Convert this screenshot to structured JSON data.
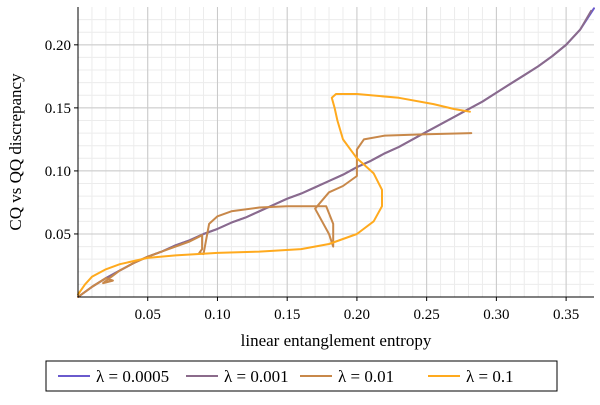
{
  "chart_data": {
    "type": "line",
    "xlabel": "linear entanglement entropy",
    "ylabel": "CQ vs QQ discrepancy",
    "xlim": [
      0,
      0.37
    ],
    "ylim": [
      0,
      0.23
    ],
    "x_ticks": [
      0.05,
      0.1,
      0.15,
      0.2,
      0.25,
      0.3,
      0.35
    ],
    "x_tick_labels": [
      "0.05",
      "0.10",
      "0.15",
      "0.20",
      "0.25",
      "0.30",
      "0.35"
    ],
    "y_ticks": [
      0.05,
      0.1,
      0.15,
      0.2
    ],
    "y_tick_labels": [
      "0.05",
      "0.10",
      "0.15",
      "0.20"
    ],
    "grid": true,
    "legend_position": "bottom",
    "series": [
      {
        "name": "λ = 0.0005",
        "color": "#6a5acd",
        "points": [
          [
            0.0,
            0.0
          ],
          [
            0.01,
            0.008
          ],
          [
            0.02,
            0.015
          ],
          [
            0.03,
            0.021
          ],
          [
            0.04,
            0.027
          ],
          [
            0.05,
            0.032
          ],
          [
            0.06,
            0.036
          ],
          [
            0.07,
            0.041
          ],
          [
            0.08,
            0.045
          ],
          [
            0.09,
            0.05
          ],
          [
            0.1,
            0.054
          ],
          [
            0.11,
            0.059
          ],
          [
            0.12,
            0.063
          ],
          [
            0.13,
            0.068
          ],
          [
            0.14,
            0.073
          ],
          [
            0.15,
            0.078
          ],
          [
            0.16,
            0.082
          ],
          [
            0.17,
            0.087
          ],
          [
            0.18,
            0.092
          ],
          [
            0.19,
            0.097
          ],
          [
            0.2,
            0.103
          ],
          [
            0.21,
            0.108
          ],
          [
            0.22,
            0.114
          ],
          [
            0.23,
            0.119
          ],
          [
            0.24,
            0.125
          ],
          [
            0.25,
            0.131
          ],
          [
            0.26,
            0.137
          ],
          [
            0.27,
            0.143
          ],
          [
            0.28,
            0.149
          ],
          [
            0.29,
            0.155
          ],
          [
            0.3,
            0.162
          ],
          [
            0.31,
            0.169
          ],
          [
            0.32,
            0.176
          ],
          [
            0.33,
            0.183
          ],
          [
            0.34,
            0.191
          ],
          [
            0.35,
            0.2
          ],
          [
            0.36,
            0.212
          ],
          [
            0.37,
            0.229
          ]
        ]
      },
      {
        "name": "λ = 0.001",
        "color": "#8b6b8b",
        "points": [
          [
            0.0,
            0.0
          ],
          [
            0.01,
            0.008
          ],
          [
            0.02,
            0.015
          ],
          [
            0.03,
            0.021
          ],
          [
            0.04,
            0.027
          ],
          [
            0.05,
            0.032
          ],
          [
            0.06,
            0.036
          ],
          [
            0.07,
            0.041
          ],
          [
            0.08,
            0.045
          ],
          [
            0.09,
            0.05
          ],
          [
            0.1,
            0.054
          ],
          [
            0.11,
            0.059
          ],
          [
            0.12,
            0.063
          ],
          [
            0.13,
            0.068
          ],
          [
            0.14,
            0.073
          ],
          [
            0.15,
            0.078
          ],
          [
            0.16,
            0.082
          ],
          [
            0.17,
            0.087
          ],
          [
            0.18,
            0.092
          ],
          [
            0.19,
            0.097
          ],
          [
            0.2,
            0.103
          ],
          [
            0.21,
            0.108
          ],
          [
            0.22,
            0.114
          ],
          [
            0.23,
            0.119
          ],
          [
            0.24,
            0.125
          ],
          [
            0.25,
            0.131
          ],
          [
            0.26,
            0.137
          ],
          [
            0.27,
            0.143
          ],
          [
            0.28,
            0.149
          ],
          [
            0.29,
            0.155
          ],
          [
            0.3,
            0.162
          ],
          [
            0.31,
            0.169
          ],
          [
            0.32,
            0.176
          ],
          [
            0.33,
            0.183
          ],
          [
            0.34,
            0.191
          ],
          [
            0.35,
            0.2
          ],
          [
            0.36,
            0.212
          ],
          [
            0.368,
            0.227
          ]
        ]
      },
      {
        "name": "λ = 0.01",
        "color": "#c8884a",
        "points": [
          [
            0.0,
            0.0
          ],
          [
            0.01,
            0.008
          ],
          [
            0.02,
            0.015
          ],
          [
            0.025,
            0.013
          ],
          [
            0.018,
            0.011
          ],
          [
            0.03,
            0.021
          ],
          [
            0.04,
            0.027
          ],
          [
            0.05,
            0.032
          ],
          [
            0.06,
            0.036
          ],
          [
            0.07,
            0.04
          ],
          [
            0.08,
            0.044
          ],
          [
            0.089,
            0.049
          ],
          [
            0.089,
            0.038
          ],
          [
            0.087,
            0.035
          ],
          [
            0.09,
            0.034
          ],
          [
            0.094,
            0.058
          ],
          [
            0.1,
            0.064
          ],
          [
            0.11,
            0.068
          ],
          [
            0.13,
            0.071
          ],
          [
            0.15,
            0.072
          ],
          [
            0.17,
            0.072
          ],
          [
            0.178,
            0.072
          ],
          [
            0.183,
            0.058
          ],
          [
            0.183,
            0.04
          ],
          [
            0.18,
            0.05
          ],
          [
            0.17,
            0.07
          ],
          [
            0.18,
            0.083
          ],
          [
            0.19,
            0.088
          ],
          [
            0.2,
            0.096
          ],
          [
            0.2,
            0.108
          ],
          [
            0.2,
            0.117
          ],
          [
            0.205,
            0.125
          ],
          [
            0.22,
            0.128
          ],
          [
            0.25,
            0.129
          ],
          [
            0.282,
            0.13
          ]
        ]
      },
      {
        "name": "λ = 0.1",
        "color": "#ffaa1e",
        "points": [
          [
            0.0,
            0.002
          ],
          [
            0.005,
            0.01
          ],
          [
            0.01,
            0.016
          ],
          [
            0.02,
            0.022
          ],
          [
            0.03,
            0.026
          ],
          [
            0.05,
            0.031
          ],
          [
            0.07,
            0.033
          ],
          [
            0.1,
            0.035
          ],
          [
            0.13,
            0.036
          ],
          [
            0.16,
            0.038
          ],
          [
            0.18,
            0.042
          ],
          [
            0.2,
            0.05
          ],
          [
            0.212,
            0.06
          ],
          [
            0.218,
            0.072
          ],
          [
            0.218,
            0.085
          ],
          [
            0.212,
            0.098
          ],
          [
            0.2,
            0.11
          ],
          [
            0.19,
            0.125
          ],
          [
            0.186,
            0.14
          ],
          [
            0.184,
            0.15
          ],
          [
            0.182,
            0.158
          ],
          [
            0.185,
            0.161
          ],
          [
            0.2,
            0.161
          ],
          [
            0.23,
            0.158
          ],
          [
            0.255,
            0.153
          ],
          [
            0.27,
            0.149
          ],
          [
            0.281,
            0.147
          ]
        ]
      }
    ]
  }
}
